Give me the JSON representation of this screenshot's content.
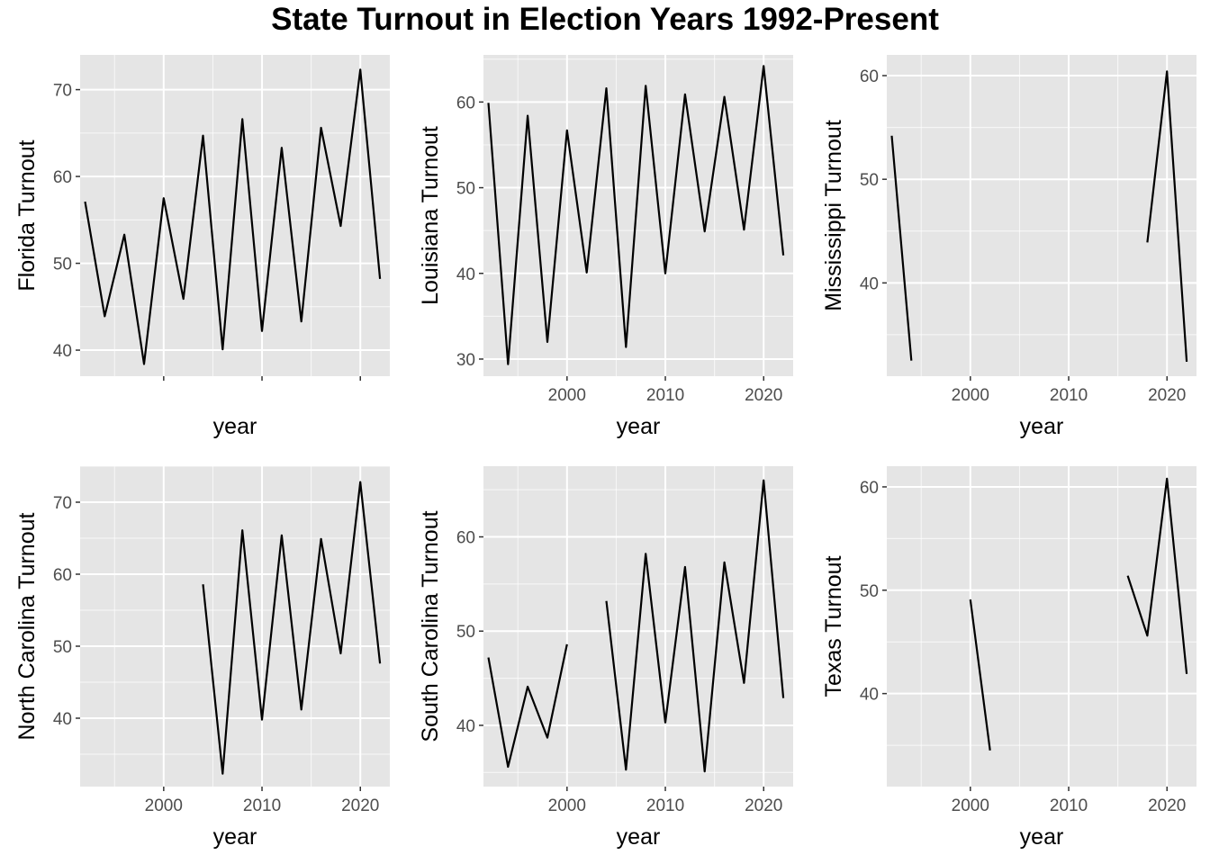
{
  "title": "State Turnout in Election Years 1992-Present",
  "chart_data": [
    {
      "type": "line",
      "panel": "florida",
      "xlabel": "year",
      "ylabel": "Florida Turnout",
      "xlim": [
        1991.5,
        2023
      ],
      "ylim": [
        37,
        74
      ],
      "x_ticks": [
        2000,
        2010,
        2020
      ],
      "x_tick_labels": [
        "",
        "",
        ""
      ],
      "y_ticks": [
        40,
        50,
        60,
        70
      ],
      "y_tick_labels": [
        "40",
        "50",
        "60",
        "70"
      ],
      "grid": true,
      "x": [
        1992,
        1994,
        1996,
        1998,
        2000,
        2002,
        2004,
        2006,
        2008,
        2010,
        2012,
        2014,
        2016,
        2018,
        2020,
        2022
      ],
      "values": [
        57.1,
        43.9,
        53.3,
        38.4,
        57.5,
        45.9,
        64.7,
        40.1,
        66.6,
        42.2,
        63.3,
        43.3,
        65.6,
        54.3,
        72.3,
        48.2
      ]
    },
    {
      "type": "line",
      "panel": "louisiana",
      "xlabel": "year",
      "ylabel": "Louisiana Turnout",
      "xlim": [
        1991.5,
        2023
      ],
      "ylim": [
        28,
        65.5
      ],
      "x_ticks": [
        2000,
        2010,
        2020
      ],
      "x_tick_labels": [
        "2000",
        "2010",
        "2020"
      ],
      "y_ticks": [
        30,
        40,
        50,
        60
      ],
      "y_tick_labels": [
        "30",
        "40",
        "50",
        "60"
      ],
      "grid": true,
      "x": [
        1992,
        1994,
        1996,
        1998,
        2000,
        2002,
        2004,
        2006,
        2008,
        2010,
        2012,
        2014,
        2016,
        2018,
        2020,
        2022
      ],
      "values": [
        59.9,
        29.4,
        58.4,
        32.0,
        56.7,
        40.1,
        61.6,
        31.4,
        61.9,
        40.0,
        60.9,
        44.9,
        60.6,
        45.1,
        64.2,
        42.1
      ]
    },
    {
      "type": "line",
      "panel": "mississippi",
      "xlabel": "year",
      "ylabel": "Mississippi Turnout",
      "xlim": [
        1991.5,
        2023
      ],
      "ylim": [
        31,
        62
      ],
      "x_ticks": [
        2000,
        2010,
        2020
      ],
      "x_tick_labels": [
        "2000",
        "2010",
        "2020"
      ],
      "y_ticks": [
        40,
        50,
        60
      ],
      "y_tick_labels": [
        "40",
        "50",
        "60"
      ],
      "grid": true,
      "segments": [
        {
          "x": [
            1992,
            1994
          ],
          "values": [
            54.2,
            32.5
          ]
        },
        {
          "x": [
            2018,
            2020,
            2022
          ],
          "values": [
            43.9,
            60.4,
            32.4
          ]
        }
      ]
    },
    {
      "type": "line",
      "panel": "north-carolina",
      "xlabel": "year",
      "ylabel": "North Carolina Turnout",
      "xlim": [
        1991.5,
        2023
      ],
      "ylim": [
        30.5,
        75
      ],
      "x_ticks": [
        2000,
        2010,
        2020
      ],
      "x_tick_labels": [
        "2000",
        "2010",
        "2020"
      ],
      "y_ticks": [
        40,
        50,
        60,
        70
      ],
      "y_tick_labels": [
        "40",
        "50",
        "60",
        "70"
      ],
      "grid": true,
      "x": [
        2004,
        2006,
        2008,
        2010,
        2012,
        2014,
        2016,
        2018,
        2020,
        2022
      ],
      "values": [
        58.6,
        32.3,
        66.1,
        39.8,
        65.4,
        41.2,
        64.9,
        49.0,
        72.8,
        47.6
      ]
    },
    {
      "type": "line",
      "panel": "south-carolina",
      "xlabel": "year",
      "ylabel": "South Carolina Turnout",
      "xlim": [
        1991.5,
        2023
      ],
      "ylim": [
        33.5,
        67.5
      ],
      "x_ticks": [
        2000,
        2010,
        2020
      ],
      "x_tick_labels": [
        "2000",
        "2010",
        "2020"
      ],
      "y_ticks": [
        40,
        50,
        60
      ],
      "y_tick_labels": [
        "40",
        "50",
        "60"
      ],
      "grid": true,
      "segments": [
        {
          "x": [
            1992,
            1994,
            1996,
            1998,
            2000
          ],
          "values": [
            47.2,
            35.6,
            44.1,
            38.7,
            48.6
          ]
        },
        {
          "x": [
            2004,
            2006,
            2008,
            2010,
            2012,
            2014,
            2016,
            2018,
            2020,
            2022
          ],
          "values": [
            53.2,
            35.3,
            58.2,
            40.3,
            56.8,
            35.1,
            57.3,
            44.5,
            66.0,
            42.9
          ]
        }
      ]
    },
    {
      "type": "line",
      "panel": "texas",
      "xlabel": "year",
      "ylabel": "Texas Turnout",
      "xlim": [
        1991.5,
        2023
      ],
      "ylim": [
        31,
        62
      ],
      "x_ticks": [
        2000,
        2010,
        2020
      ],
      "x_tick_labels": [
        "2000",
        "2010",
        "2020"
      ],
      "y_ticks": [
        40,
        50,
        60
      ],
      "y_tick_labels": [
        "40",
        "50",
        "60"
      ],
      "grid": true,
      "segments": [
        {
          "x": [
            2000,
            2002
          ],
          "values": [
            49.1,
            34.5
          ]
        },
        {
          "x": [
            2016,
            2018,
            2020,
            2022
          ],
          "values": [
            51.4,
            45.6,
            60.8,
            41.9
          ]
        }
      ]
    }
  ]
}
